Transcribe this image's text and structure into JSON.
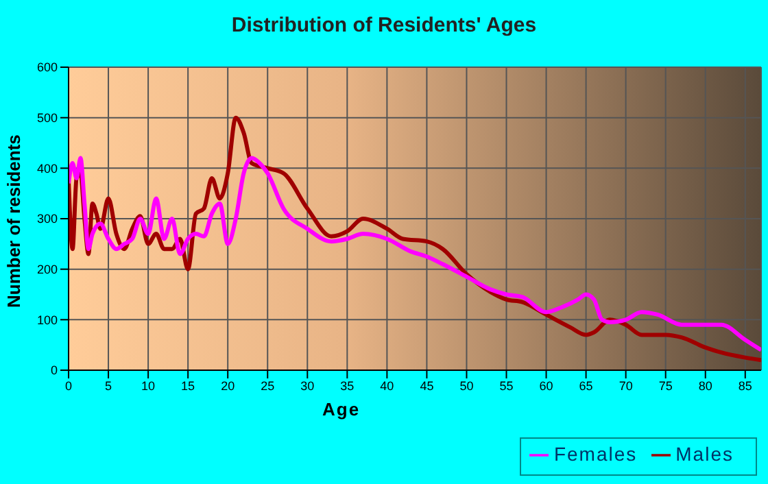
{
  "chart_data": {
    "type": "line",
    "title": "Distribution of Residents' Ages",
    "xlabel": "Age",
    "ylabel": "Number of residents",
    "xlim": [
      0,
      87
    ],
    "xticks": [
      0,
      5,
      10,
      15,
      20,
      25,
      30,
      35,
      40,
      45,
      50,
      55,
      60,
      65,
      70,
      75,
      80,
      85
    ],
    "ylim": [
      0,
      600
    ],
    "yticks": [
      0,
      100,
      200,
      300,
      400,
      500,
      600
    ],
    "grid": true,
    "legend": "bottom right",
    "marker": "none",
    "line_style": "solid",
    "series": [
      {
        "name": "Males",
        "color": "#a00000",
        "x": [
          0,
          0.5,
          1,
          1.5,
          2,
          2.5,
          3,
          3.5,
          4,
          5,
          6,
          7,
          8,
          9,
          10,
          11,
          12,
          13,
          14,
          15,
          16,
          17,
          18,
          19,
          20,
          21,
          22,
          23,
          25,
          27,
          30,
          33,
          35,
          37,
          40,
          42,
          45,
          47,
          50,
          53,
          55,
          57,
          60,
          63,
          65,
          66,
          68,
          70,
          72,
          75,
          77,
          80,
          82,
          85,
          87
        ],
        "values": [
          380,
          240,
          380,
          390,
          300,
          230,
          330,
          310,
          280,
          340,
          270,
          240,
          280,
          305,
          250,
          270,
          240,
          240,
          260,
          200,
          310,
          320,
          380,
          340,
          390,
          500,
          470,
          410,
          400,
          390,
          320,
          265,
          275,
          300,
          280,
          260,
          255,
          240,
          190,
          155,
          140,
          135,
          110,
          85,
          70,
          75,
          100,
          90,
          70,
          70,
          65,
          45,
          35,
          25,
          20
        ]
      },
      {
        "name": "Females",
        "color": "#ff00ff",
        "x": [
          0,
          0.5,
          1,
          1.5,
          2,
          2.5,
          3,
          4,
          5,
          6,
          7,
          8,
          9,
          10,
          11,
          12,
          13,
          14,
          15,
          16,
          17,
          18,
          19,
          20,
          21,
          22,
          23,
          24,
          25,
          27,
          30,
          33,
          35,
          37,
          40,
          43,
          45,
          47,
          50,
          53,
          55,
          57,
          60,
          62,
          64,
          65,
          66,
          67,
          68,
          70,
          72,
          74,
          77,
          80,
          82,
          85,
          87
        ],
        "values": [
          370,
          410,
          380,
          420,
          330,
          240,
          270,
          290,
          260,
          240,
          250,
          260,
          300,
          270,
          340,
          260,
          300,
          230,
          260,
          270,
          265,
          310,
          330,
          250,
          300,
          390,
          420,
          410,
          390,
          320,
          280,
          255,
          260,
          270,
          260,
          235,
          225,
          210,
          185,
          160,
          150,
          145,
          115,
          125,
          140,
          150,
          140,
          100,
          95,
          100,
          115,
          110,
          90,
          90,
          90,
          60,
          40
        ]
      }
    ]
  }
}
